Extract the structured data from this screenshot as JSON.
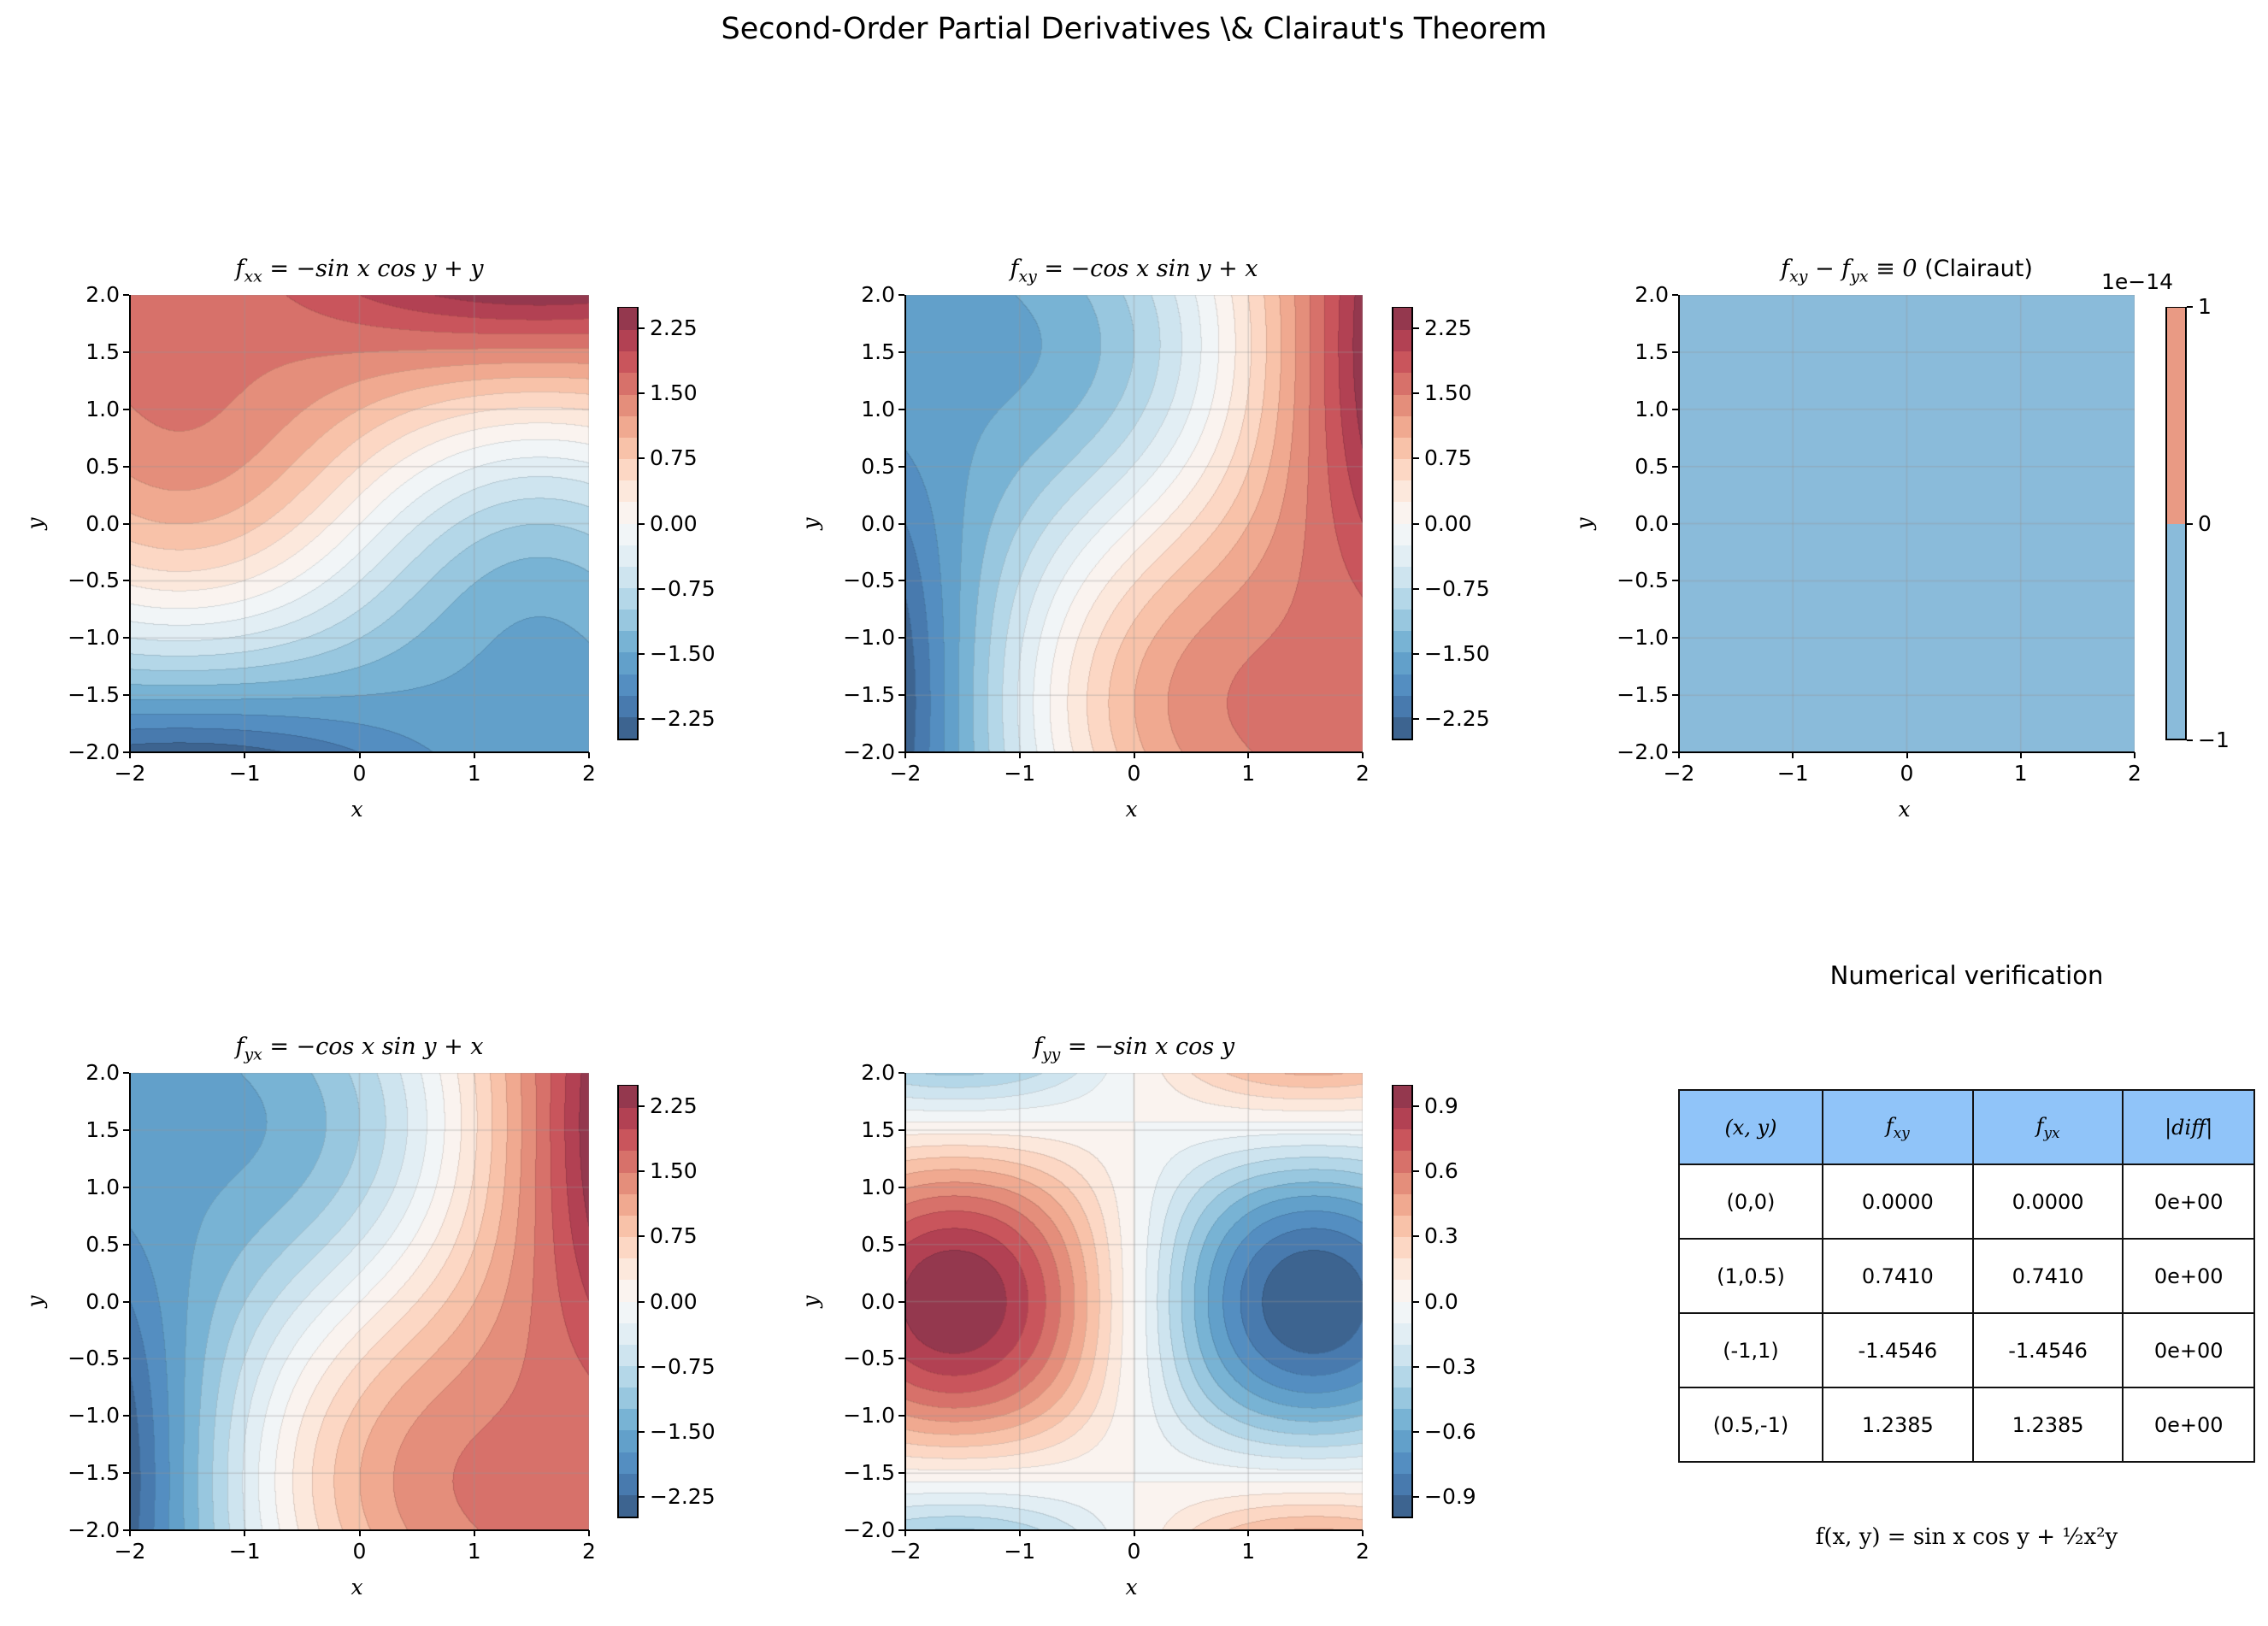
{
  "suptitle": "Second-Order Partial Derivatives \\& Clairaut's Theorem",
  "chart_data": [
    {
      "type": "contour",
      "title": {
        "main": "f",
        "sub": "xx",
        "rest": " = −sin x cos y + y",
        "suffix": ""
      },
      "xlabel": "x",
      "ylabel": "y",
      "xlim": [
        -2,
        2
      ],
      "ylim": [
        -2,
        2
      ],
      "xticks": [
        -2,
        -1,
        0,
        1,
        2
      ],
      "xtick_labels": [
        "−2",
        "−1",
        "0",
        "1",
        "2"
      ],
      "yticks": [
        -2,
        -1.5,
        -1,
        -0.5,
        0,
        0.5,
        1,
        1.5,
        2
      ],
      "ytick_labels": [
        "−2.0",
        "−1.5",
        "−1.0",
        "−0.5",
        "0.0",
        "0.5",
        "1.0",
        "1.5",
        "2.0"
      ],
      "grid": true,
      "colormap": "RdBu_r",
      "levels": {
        "min": -2.5,
        "max": 2.5,
        "step": 0.25
      },
      "colorbar": {
        "ticks": [
          2.25,
          1.5,
          0.75,
          0,
          -0.75,
          -1.5,
          -2.25
        ],
        "tick_labels": [
          "2.25",
          "1.50",
          "0.75",
          "0.00",
          "−0.75",
          "−1.50",
          "−2.25"
        ],
        "offset_label": ""
      }
    },
    {
      "type": "contour",
      "title": {
        "main": "f",
        "sub": "xy",
        "rest": " = −cos x sin y + x",
        "suffix": ""
      },
      "xlabel": "x",
      "ylabel": "y",
      "xlim": [
        -2,
        2
      ],
      "ylim": [
        -2,
        2
      ],
      "xticks": [
        -2,
        -1,
        0,
        1,
        2
      ],
      "xtick_labels": [
        "−2",
        "−1",
        "0",
        "1",
        "2"
      ],
      "yticks": [
        -2,
        -1.5,
        -1,
        -0.5,
        0,
        0.5,
        1,
        1.5,
        2
      ],
      "ytick_labels": [
        "−2.0",
        "−1.5",
        "−1.0",
        "−0.5",
        "0.0",
        "0.5",
        "1.0",
        "1.5",
        "2.0"
      ],
      "grid": true,
      "colormap": "RdBu_r",
      "levels": {
        "min": -2.5,
        "max": 2.5,
        "step": 0.25
      },
      "colorbar": {
        "ticks": [
          2.25,
          1.5,
          0.75,
          0,
          -0.75,
          -1.5,
          -2.25
        ],
        "tick_labels": [
          "2.25",
          "1.50",
          "0.75",
          "0.00",
          "−0.75",
          "−1.50",
          "−2.25"
        ],
        "offset_label": ""
      }
    },
    {
      "type": "contour",
      "title": {
        "main": "f",
        "sub": "xy",
        "rest": " − f",
        "sub2": "yx",
        "rest2": " ≡ 0",
        "suffix": " (Clairaut)"
      },
      "xlabel": "x",
      "ylabel": "y",
      "xlim": [
        -2,
        2
      ],
      "ylim": [
        -2,
        2
      ],
      "xticks": [
        -2,
        -1,
        0,
        1,
        2
      ],
      "xtick_labels": [
        "−2",
        "−1",
        "0",
        "1",
        "2"
      ],
      "yticks": [
        -2,
        -1.5,
        -1,
        -0.5,
        0,
        0.5,
        1,
        1.5,
        2
      ],
      "ytick_labels": [
        "−2.0",
        "−1.5",
        "−1.0",
        "−0.5",
        "0.0",
        "0.5",
        "1.0",
        "1.5",
        "2.0"
      ],
      "grid": true,
      "colormap": "RdBu_r",
      "levels": {
        "min": -1,
        "max": 1,
        "step": 1
      },
      "band_colors": [
        "#8abbda",
        "#e99a84"
      ],
      "colorbar": {
        "ticks": [
          1,
          0,
          -1
        ],
        "tick_labels": [
          "1",
          "0",
          "−1"
        ],
        "offset_label": "1e−14"
      }
    },
    {
      "type": "contour",
      "title": {
        "main": "f",
        "sub": "yx",
        "rest": " = −cos x sin y + x",
        "suffix": ""
      },
      "xlabel": "x",
      "ylabel": "y",
      "xlim": [
        -2,
        2
      ],
      "ylim": [
        -2,
        2
      ],
      "xticks": [
        -2,
        -1,
        0,
        1,
        2
      ],
      "xtick_labels": [
        "−2",
        "−1",
        "0",
        "1",
        "2"
      ],
      "yticks": [
        -2,
        -1.5,
        -1,
        -0.5,
        0,
        0.5,
        1,
        1.5,
        2
      ],
      "ytick_labels": [
        "−2.0",
        "−1.5",
        "−1.0",
        "−0.5",
        "0.0",
        "0.5",
        "1.0",
        "1.5",
        "2.0"
      ],
      "grid": true,
      "colormap": "RdBu_r",
      "levels": {
        "min": -2.5,
        "max": 2.5,
        "step": 0.25
      },
      "colorbar": {
        "ticks": [
          2.25,
          1.5,
          0.75,
          0,
          -0.75,
          -1.5,
          -2.25
        ],
        "tick_labels": [
          "2.25",
          "1.50",
          "0.75",
          "0.00",
          "−0.75",
          "−1.50",
          "−2.25"
        ],
        "offset_label": ""
      }
    },
    {
      "type": "contour",
      "title": {
        "main": "f",
        "sub": "yy",
        "rest": " = −sin x cos y",
        "suffix": ""
      },
      "xlabel": "x",
      "ylabel": "y",
      "xlim": [
        -2,
        2
      ],
      "ylim": [
        -2,
        2
      ],
      "xticks": [
        -2,
        -1,
        0,
        1,
        2
      ],
      "xtick_labels": [
        "−2",
        "−1",
        "0",
        "1",
        "2"
      ],
      "yticks": [
        -2,
        -1.5,
        -1,
        -0.5,
        0,
        0.5,
        1,
        1.5,
        2
      ],
      "ytick_labels": [
        "−2.0",
        "−1.5",
        "−1.0",
        "−0.5",
        "0.0",
        "0.5",
        "1.0",
        "1.5",
        "2.0"
      ],
      "grid": true,
      "colormap": "RdBu_r",
      "levels": {
        "min": -1.0,
        "max": 1.0,
        "step": 0.1
      },
      "colorbar": {
        "ticks": [
          0.9,
          0.6,
          0.3,
          0,
          -0.3,
          -0.6,
          -0.9
        ],
        "tick_labels": [
          "0.9",
          "0.6",
          "0.3",
          "0.0",
          "−0.3",
          "−0.6",
          "−0.9"
        ],
        "offset_label": ""
      }
    },
    {
      "type": "table",
      "title": "Numerical verification",
      "header_color": "#90c4f9",
      "columns": [
        {
          "main": "(x, y)",
          "sub": ""
        },
        {
          "main": "f",
          "sub": "xy"
        },
        {
          "main": "f",
          "sub": "yx"
        },
        {
          "main": "|diff|",
          "sub": ""
        }
      ],
      "rows": [
        [
          "(0,0)",
          "0.0000",
          "0.0000",
          "0e+00"
        ],
        [
          "(1,0.5)",
          "0.7410",
          "0.7410",
          "0e+00"
        ],
        [
          "(-1,1)",
          "-1.4546",
          "-1.4546",
          "0e+00"
        ],
        [
          "(0.5,-1)",
          "1.2385",
          "1.2385",
          "0e+00"
        ]
      ],
      "footnote": "f(x, y) = sin x cos y + ½x²y"
    }
  ]
}
